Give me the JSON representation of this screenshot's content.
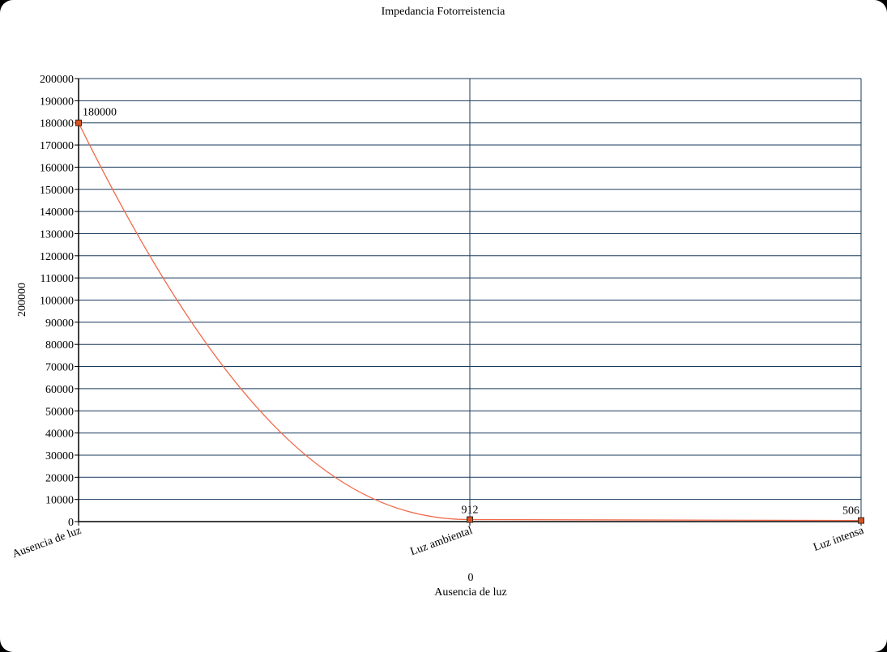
{
  "chart_data": {
    "type": "line",
    "title": "Impedancia Fotorreistencia",
    "xlabel": "Ausencia de luz",
    "xlabel_value": "0",
    "ylabel": "200000",
    "categories": [
      "Ausencia de luz",
      "Luz ambiental",
      "Luz intensa"
    ],
    "series": [
      {
        "values": [
          180000,
          912,
          506
        ],
        "data_labels": [
          "180000",
          "912",
          "506"
        ]
      }
    ],
    "ylim": [
      0,
      200000
    ],
    "ytick_step": 10000,
    "yticks": [
      "0",
      "10000",
      "20000",
      "30000",
      "40000",
      "50000",
      "60000",
      "70000",
      "80000",
      "90000",
      "100000",
      "110000",
      "120000",
      "130000",
      "140000",
      "150000",
      "160000",
      "170000",
      "180000",
      "190000",
      "200000"
    ],
    "grid": true,
    "legend": "none",
    "colors": {
      "line": "#f26a4b",
      "marker_fill": "#d9531e",
      "marker_stroke": "#3a2a20",
      "grid": "#1a3a5c",
      "axis": "#000000"
    }
  }
}
